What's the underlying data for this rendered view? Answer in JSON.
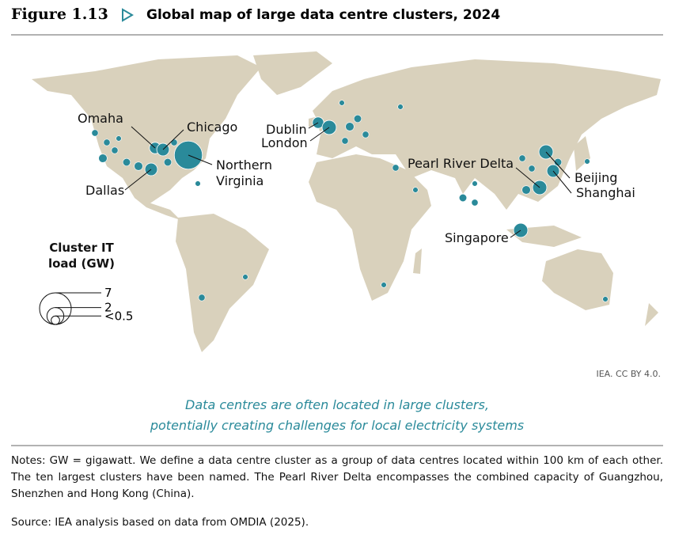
{
  "header": {
    "figure": "Figure 1.13",
    "title": "Global map of large data centre clusters, 2024"
  },
  "map": {
    "legend": {
      "title": "Cluster IT load (GW)",
      "sizes": [
        7,
        2,
        {
          "value": 0.5,
          "label": "<0.5"
        }
      ]
    },
    "clusters": [
      {
        "name": "Omaha",
        "gw": 0.9
      },
      {
        "name": "Chicago",
        "gw": 1.1
      },
      {
        "name": "Northern Virginia",
        "gw": 5.5
      },
      {
        "name": "Dallas",
        "gw": 1.1
      },
      {
        "name": "Dublin",
        "gw": 0.9
      },
      {
        "name": "London",
        "gw": 1.4
      },
      {
        "name": "Pearl River Delta",
        "gw": 1.4
      },
      {
        "name": "Beijing",
        "gw": 1.4
      },
      {
        "name": "Shanghai",
        "gw": 1.1
      },
      {
        "name": "Singapore",
        "gw": 1.4
      }
    ],
    "other_clusters_gw": [
      0.5,
      0.3,
      0.3,
      0.2,
      0.4,
      0.5,
      0.4,
      0.3,
      0.2,
      0.3,
      0.2,
      0.5,
      0.4,
      0.3,
      0.3,
      0.3,
      0.4,
      0.2,
      0.5,
      0.4,
      0.3,
      0.2,
      0.2,
      0.3,
      0.2,
      0.2,
      0.3,
      0.2,
      0.3,
      0.2
    ],
    "credit": "IEA. CC BY 4.0."
  },
  "caption": [
    "Data centres are often located in large clusters,",
    "potentially creating challenges for local electricity systems"
  ],
  "notes": "Notes: GW = gigawatt. We define a data centre cluster as a group of data centres located within 100 km of each other. The ten largest clusters have been named. The Pearl River Delta encompasses the combined capacity of Guangzhou, Shenzhen and Hong Kong (China).",
  "source": "Source: IEA analysis based on data from OMDIA (2025)."
}
